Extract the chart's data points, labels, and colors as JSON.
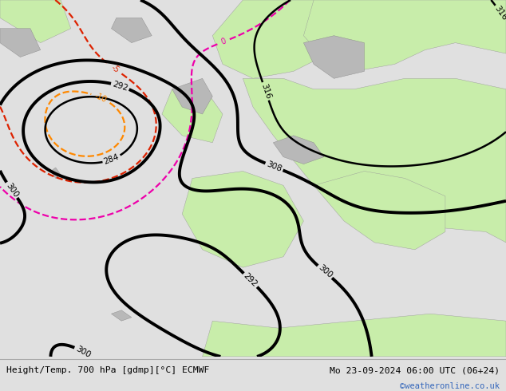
{
  "title_left": "Height/Temp. 700 hPa [gdmp][°C] ECMWF",
  "title_right": "Mo 23-09-2024 06:00 UTC (06+24)",
  "watermark": "©weatheronline.co.uk",
  "bg_ocean_color": "#d0d0d0",
  "map_land_color": "#c8edaa",
  "gray_land_color": "#b8b8b8",
  "bottom_bar_color": "#e0e0e0",
  "text_color": "#000000",
  "watermark_color": "#3366bb",
  "figsize": [
    6.34,
    4.9
  ],
  "dpi": 100
}
